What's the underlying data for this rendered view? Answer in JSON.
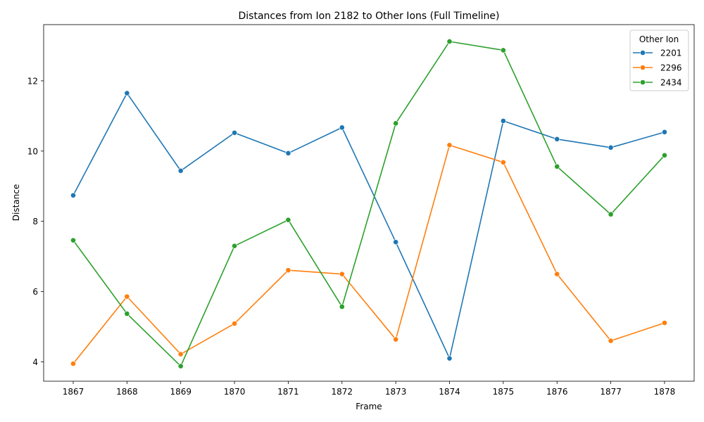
{
  "chart_data": {
    "type": "line",
    "title": "Distances from Ion 2182 to Other Ions (Full Timeline)",
    "xlabel": "Frame",
    "ylabel": "Distance",
    "x": [
      1867,
      1868,
      1869,
      1870,
      1871,
      1872,
      1873,
      1874,
      1875,
      1876,
      1877,
      1878
    ],
    "ylim": [
      3.45,
      13.6
    ],
    "yticks": [
      4,
      6,
      8,
      10,
      12
    ],
    "grid": false,
    "legend": {
      "title": "Other Ion",
      "placement": "top-right"
    },
    "markers": "circle",
    "series": [
      {
        "name": "2201",
        "color": "#1f77b4",
        "values": [
          8.74,
          11.65,
          9.44,
          10.52,
          9.94,
          10.67,
          7.41,
          4.1,
          10.86,
          10.34,
          10.1,
          10.54
        ]
      },
      {
        "name": "2296",
        "color": "#ff7f0e",
        "values": [
          3.95,
          5.86,
          4.22,
          5.09,
          6.61,
          6.5,
          4.64,
          10.17,
          9.68,
          6.5,
          4.6,
          5.11
        ]
      },
      {
        "name": "2434",
        "color": "#2ca02c",
        "values": [
          7.46,
          5.37,
          3.88,
          7.3,
          8.04,
          5.57,
          10.79,
          13.12,
          12.87,
          9.56,
          8.2,
          9.88
        ]
      }
    ]
  }
}
